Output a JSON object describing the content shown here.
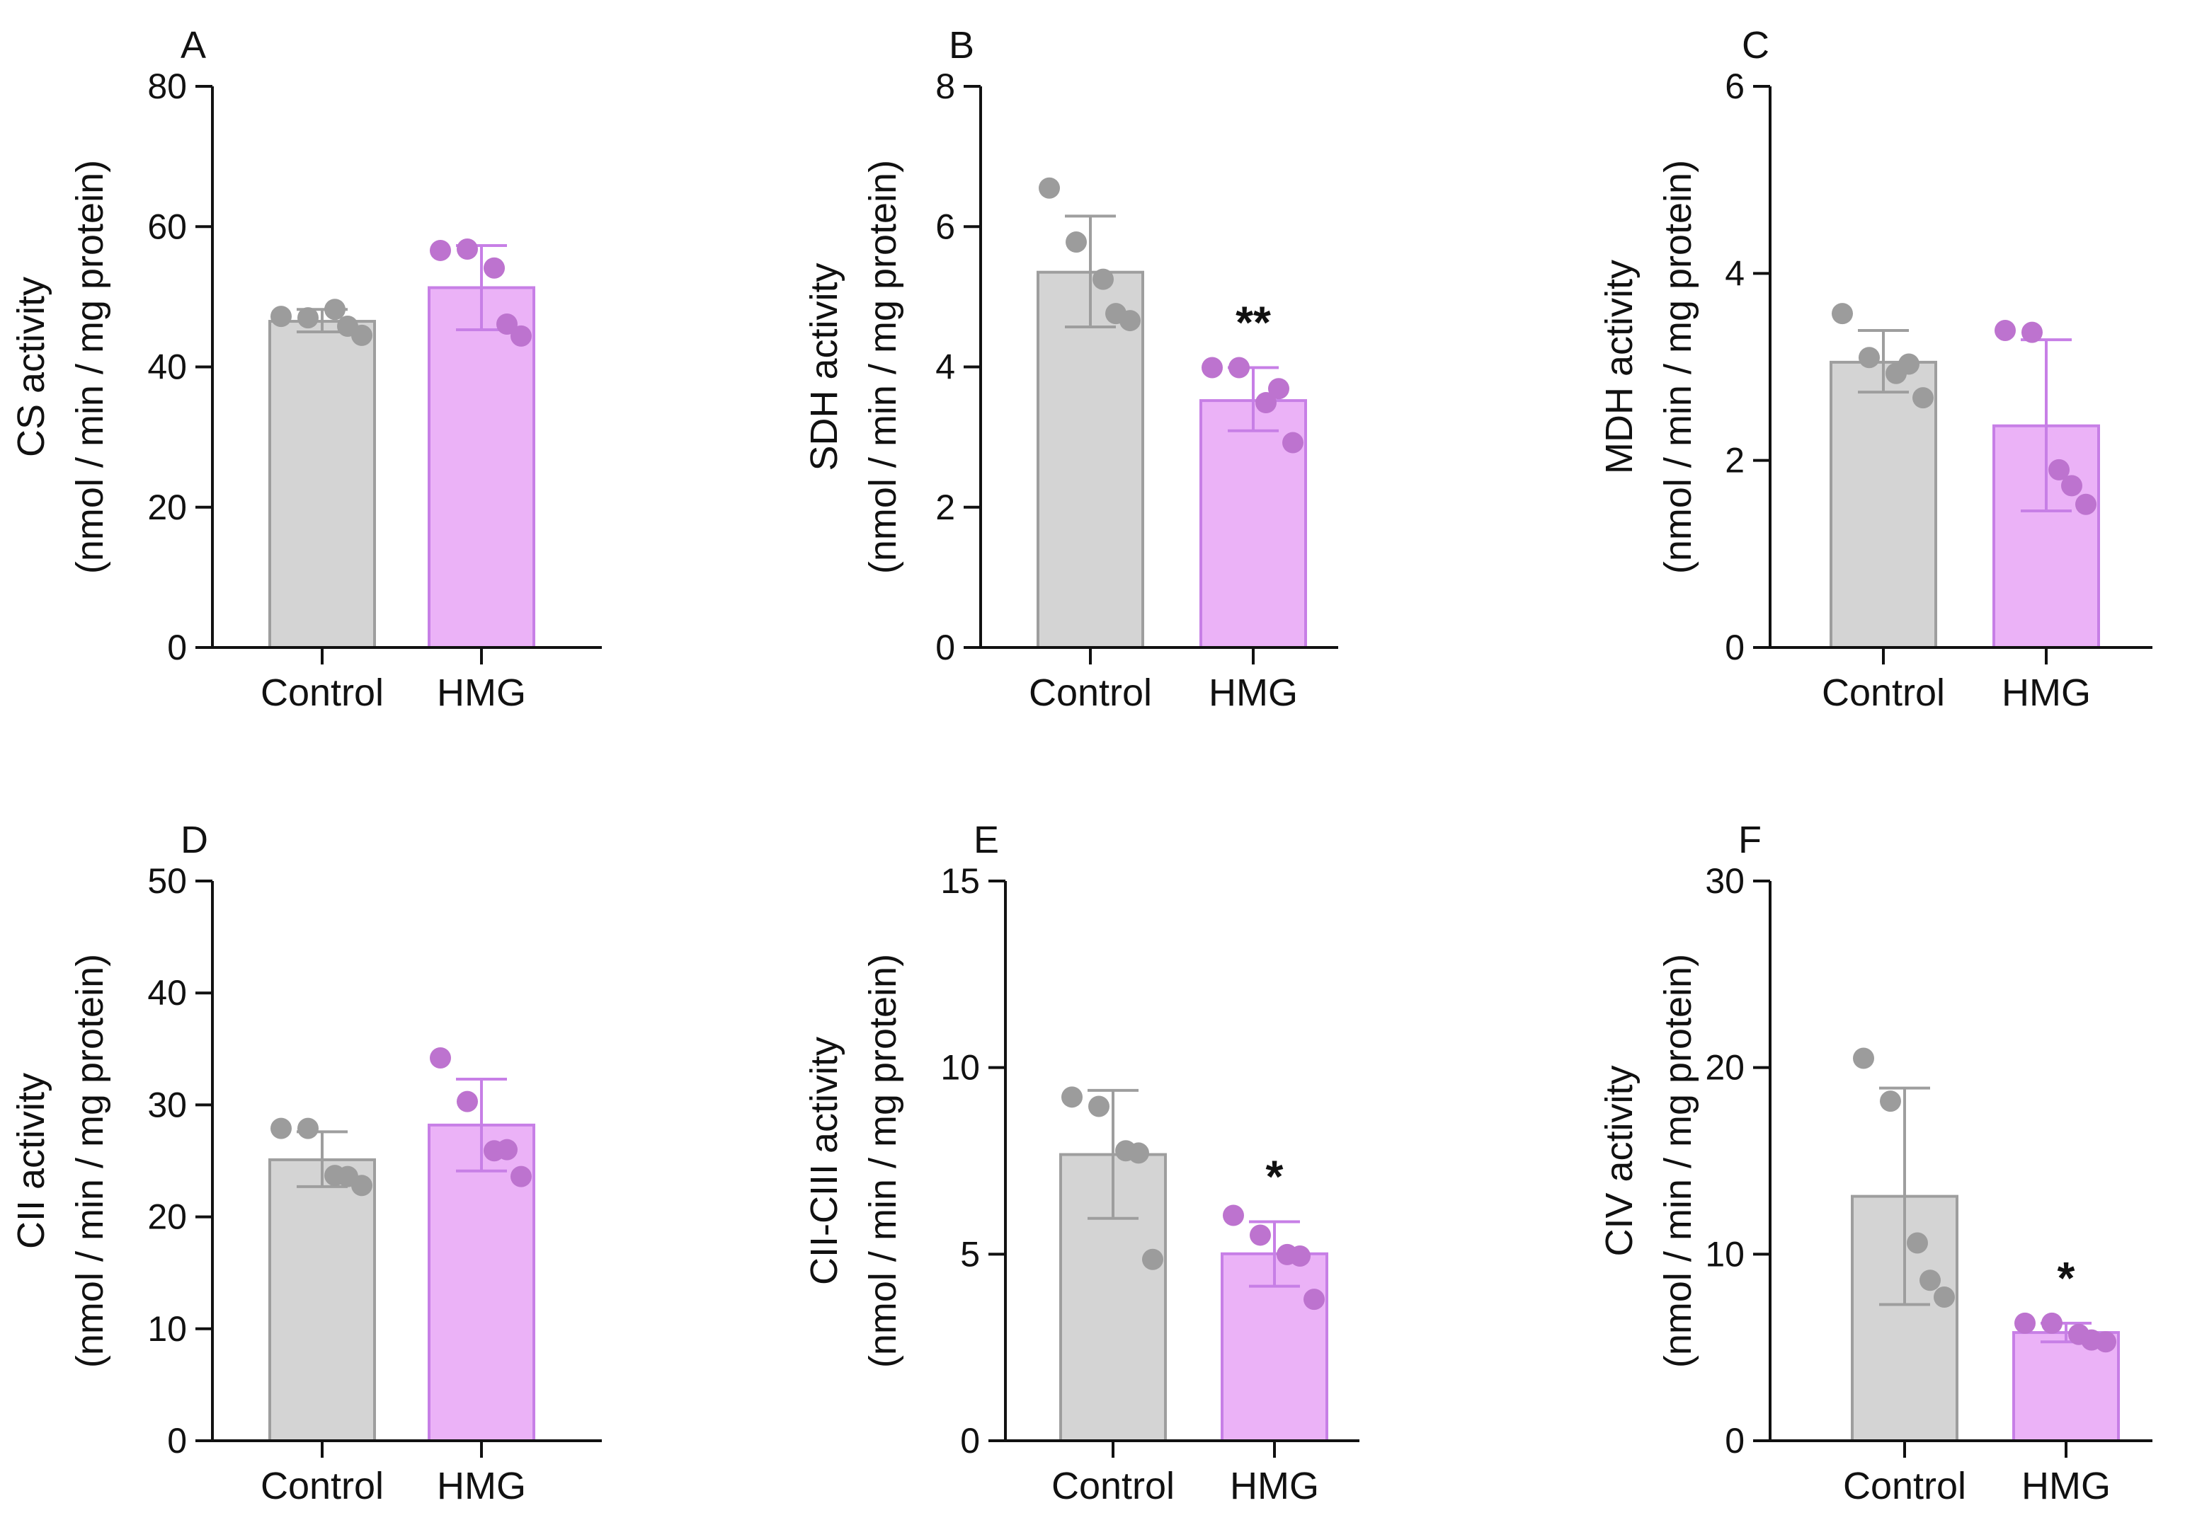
{
  "chart_data": [
    {
      "type": "bar",
      "panel": "A",
      "categories": [
        "Control",
        "HMG"
      ],
      "values": [
        46.5,
        51.3
      ],
      "error": [
        [
          45.0,
          48.2
        ],
        [
          45.3,
          57.3
        ]
      ],
      "points": [
        [
          47.2,
          47.0,
          48.2,
          45.8,
          44.5
        ],
        [
          56.6,
          56.8,
          54.1,
          46.1,
          44.4
        ]
      ],
      "ylabel": [
        "CS activity",
        "(nmol / min / mg protein)"
      ],
      "ylim": [
        0,
        80
      ],
      "yticks": [
        0,
        20,
        40,
        60,
        80
      ],
      "significance": [
        "",
        ""
      ]
    },
    {
      "type": "bar",
      "panel": "B",
      "categories": [
        "Control",
        "HMG"
      ],
      "values": [
        5.35,
        3.52
      ],
      "error": [
        [
          4.57,
          6.15
        ],
        [
          3.09,
          3.99
        ]
      ],
      "points": [
        [
          6.55,
          5.78,
          5.25,
          4.76,
          4.66
        ],
        [
          3.99,
          3.99,
          3.49,
          3.69,
          2.92
        ]
      ],
      "ylabel": [
        "SDH activity",
        "(nmol / min / mg protein)"
      ],
      "ylim": [
        0,
        8
      ],
      "yticks": [
        0,
        2,
        4,
        6,
        8
      ],
      "significance": [
        "",
        "**"
      ]
    },
    {
      "type": "bar",
      "panel": "C",
      "categories": [
        "Control",
        "HMG"
      ],
      "values": [
        3.05,
        2.37
      ],
      "error": [
        [
          2.73,
          3.39
        ],
        [
          1.46,
          3.29
        ]
      ],
      "points": [
        [
          3.57,
          3.1,
          2.93,
          3.03,
          2.67
        ],
        [
          3.39,
          3.37,
          1.9,
          1.73,
          1.53
        ]
      ],
      "ylabel": [
        "MDH activity",
        "(nmol / min / mg protein)"
      ],
      "ylim": [
        0,
        6
      ],
      "yticks": [
        0,
        2,
        4,
        6
      ],
      "significance": [
        "",
        ""
      ]
    },
    {
      "type": "bar",
      "panel": "D",
      "categories": [
        "Control",
        "HMG"
      ],
      "values": [
        25.1,
        28.2
      ],
      "error": [
        [
          22.7,
          27.6
        ],
        [
          24.1,
          32.3
        ]
      ],
      "points": [
        [
          27.9,
          27.9,
          23.7,
          23.6,
          22.8
        ],
        [
          34.2,
          30.3,
          25.9,
          26.0,
          23.6
        ]
      ],
      "ylabel": [
        "CII activity",
        "(nmol / min / mg protein)"
      ],
      "ylim": [
        0,
        50
      ],
      "yticks": [
        0,
        10,
        20,
        30,
        40,
        50
      ],
      "significance": [
        "",
        ""
      ]
    },
    {
      "type": "bar",
      "panel": "E",
      "categories": [
        "Control",
        "HMG"
      ],
      "values": [
        7.67,
        5.01
      ],
      "error": [
        [
          5.96,
          9.39
        ],
        [
          4.14,
          5.87
        ]
      ],
      "points": [
        [
          9.21,
          8.96,
          7.77,
          7.71,
          4.86
        ],
        [
          6.04,
          5.51,
          4.99,
          4.95,
          3.79
        ]
      ],
      "ylabel": [
        "CII-CIII activity",
        "(nmol / min / mg protein)"
      ],
      "ylim": [
        0,
        15
      ],
      "yticks": [
        0,
        5,
        10,
        15
      ],
      "significance": [
        "",
        "*"
      ]
    },
    {
      "type": "bar",
      "panel": "F",
      "categories": [
        "Control",
        "HMG"
      ],
      "values": [
        13.1,
        5.8
      ],
      "error": [
        [
          7.3,
          18.9
        ],
        [
          5.3,
          6.3
        ]
      ],
      "points": [
        [
          20.5,
          18.2,
          10.6,
          8.6,
          7.7
        ],
        [
          6.3,
          6.3,
          5.7,
          5.4,
          5.3
        ]
      ],
      "ylabel": [
        "CIV activity",
        "(nmol / min / mg protein)"
      ],
      "ylim": [
        0,
        30
      ],
      "yticks": [
        0,
        10,
        20,
        30
      ],
      "significance": [
        "",
        "*"
      ]
    }
  ],
  "colors": {
    "control_bar": "#d4d4d4",
    "control_edge": "#9e9e9e",
    "control_point": "#9c9c9c",
    "hmg_bar": "#ebb2f7",
    "hmg_edge": "#c77fe6",
    "hmg_point": "#bd73cf",
    "axis": "#111111"
  }
}
